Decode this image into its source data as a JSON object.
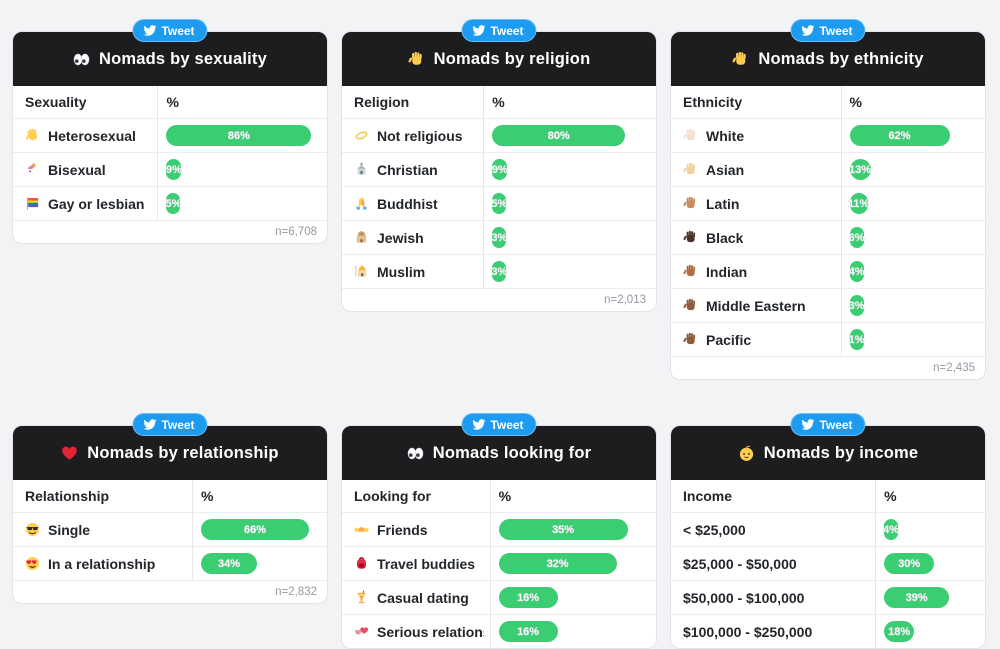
{
  "tweet_button": {
    "label": "Tweet",
    "icon": "twitter-bird"
  },
  "colors": {
    "page_background": "#f2f3f5",
    "card_header_background": "#1d1d1f",
    "bar_green": "#3bcd72",
    "tweet_blue": "#1d9bf0"
  },
  "panels": [
    {
      "title": "Nomads by sexuality",
      "title_icon": "eyes",
      "columns": [
        "Sexuality",
        "%"
      ],
      "rows": [
        {
          "icon": "waving-hand",
          "label": "Heterosexual",
          "percent": 86,
          "percent_label": "86%"
        },
        {
          "icon": "unicorn",
          "label": "Bisexual",
          "percent": 9,
          "percent_label": "9%"
        },
        {
          "icon": "rainbow-flag",
          "label": "Gay or lesbian",
          "percent": 5,
          "percent_label": "5%"
        }
      ],
      "footer": "n=6,708"
    },
    {
      "title": "Nomads by religion",
      "title_icon": "raised-hand",
      "columns": [
        "Religion",
        "%"
      ],
      "rows": [
        {
          "icon": "halo",
          "label": "Not religious",
          "percent": 80,
          "percent_label": "80%"
        },
        {
          "icon": "church",
          "label": "Christian",
          "percent": 9,
          "percent_label": "9%"
        },
        {
          "icon": "prayer-hands",
          "label": "Buddhist",
          "percent": 5,
          "percent_label": "5%"
        },
        {
          "icon": "synagogue",
          "label": "Jewish",
          "percent": 3,
          "percent_label": "3%"
        },
        {
          "icon": "mosque",
          "label": "Muslim",
          "percent": 3,
          "percent_label": "3%"
        }
      ],
      "footer": "n=2,013"
    },
    {
      "title": "Nomads by ethnicity",
      "title_icon": "raised-hand",
      "columns": [
        "Ethnicity",
        "%"
      ],
      "rows": [
        {
          "icon": "hand-tone-light",
          "label": "White",
          "percent": 62,
          "percent_label": "62%"
        },
        {
          "icon": "hand-tone-medium-light",
          "label": "Asian",
          "percent": 13,
          "percent_label": "13%"
        },
        {
          "icon": "hand-tone-medium",
          "label": "Latin",
          "percent": 11,
          "percent_label": "11%"
        },
        {
          "icon": "hand-tone-darkest",
          "label": "Black",
          "percent": 6,
          "percent_label": "6%"
        },
        {
          "icon": "hand-tone-medium-dark",
          "label": "Indian",
          "percent": 4,
          "percent_label": "4%"
        },
        {
          "icon": "hand-tone-dark",
          "label": "Middle Eastern",
          "percent": 3,
          "percent_label": "3%"
        },
        {
          "icon": "hand-tone-dark",
          "label": "Pacific",
          "percent": 1,
          "percent_label": "1%"
        }
      ],
      "footer": "n=2,435"
    },
    {
      "title": "Nomads by relationship",
      "title_icon": "red-heart",
      "columns": [
        "Relationship",
        "%"
      ],
      "rows": [
        {
          "icon": "sunglasses-face",
          "label": "Single",
          "percent": 66,
          "percent_label": "66%"
        },
        {
          "icon": "heart-eyes-face",
          "label": "In a relationship",
          "percent": 34,
          "percent_label": "34%"
        }
      ],
      "footer": "n=2,832"
    },
    {
      "title": "Nomads looking for",
      "title_icon": "eyes",
      "columns": [
        "Looking for",
        "%"
      ],
      "rows": [
        {
          "icon": "handshake",
          "label": "Friends",
          "percent": 35,
          "percent_label": "35%"
        },
        {
          "icon": "backpack",
          "label": "Travel buddies",
          "percent": 32,
          "percent_label": "32%"
        },
        {
          "icon": "tropical-drink",
          "label": "Casual dating",
          "percent": 16,
          "percent_label": "16%"
        },
        {
          "icon": "two-hearts",
          "label": "Serious relationship",
          "percent": 16,
          "percent_label": "16%"
        }
      ]
    },
    {
      "title": "Nomads by income",
      "title_icon": "baby",
      "columns": [
        "Income",
        "%"
      ],
      "rows": [
        {
          "icon": null,
          "label": "< $25,000",
          "percent": 4,
          "percent_label": "4%"
        },
        {
          "icon": null,
          "label": "$25,000 - $50,000",
          "percent": 30,
          "percent_label": "30%"
        },
        {
          "icon": null,
          "label": "$50,000 - $100,000",
          "percent": 39,
          "percent_label": "39%"
        },
        {
          "icon": null,
          "label": "$100,000 - $250,000",
          "percent": 18,
          "percent_label": "18%"
        }
      ]
    }
  ]
}
